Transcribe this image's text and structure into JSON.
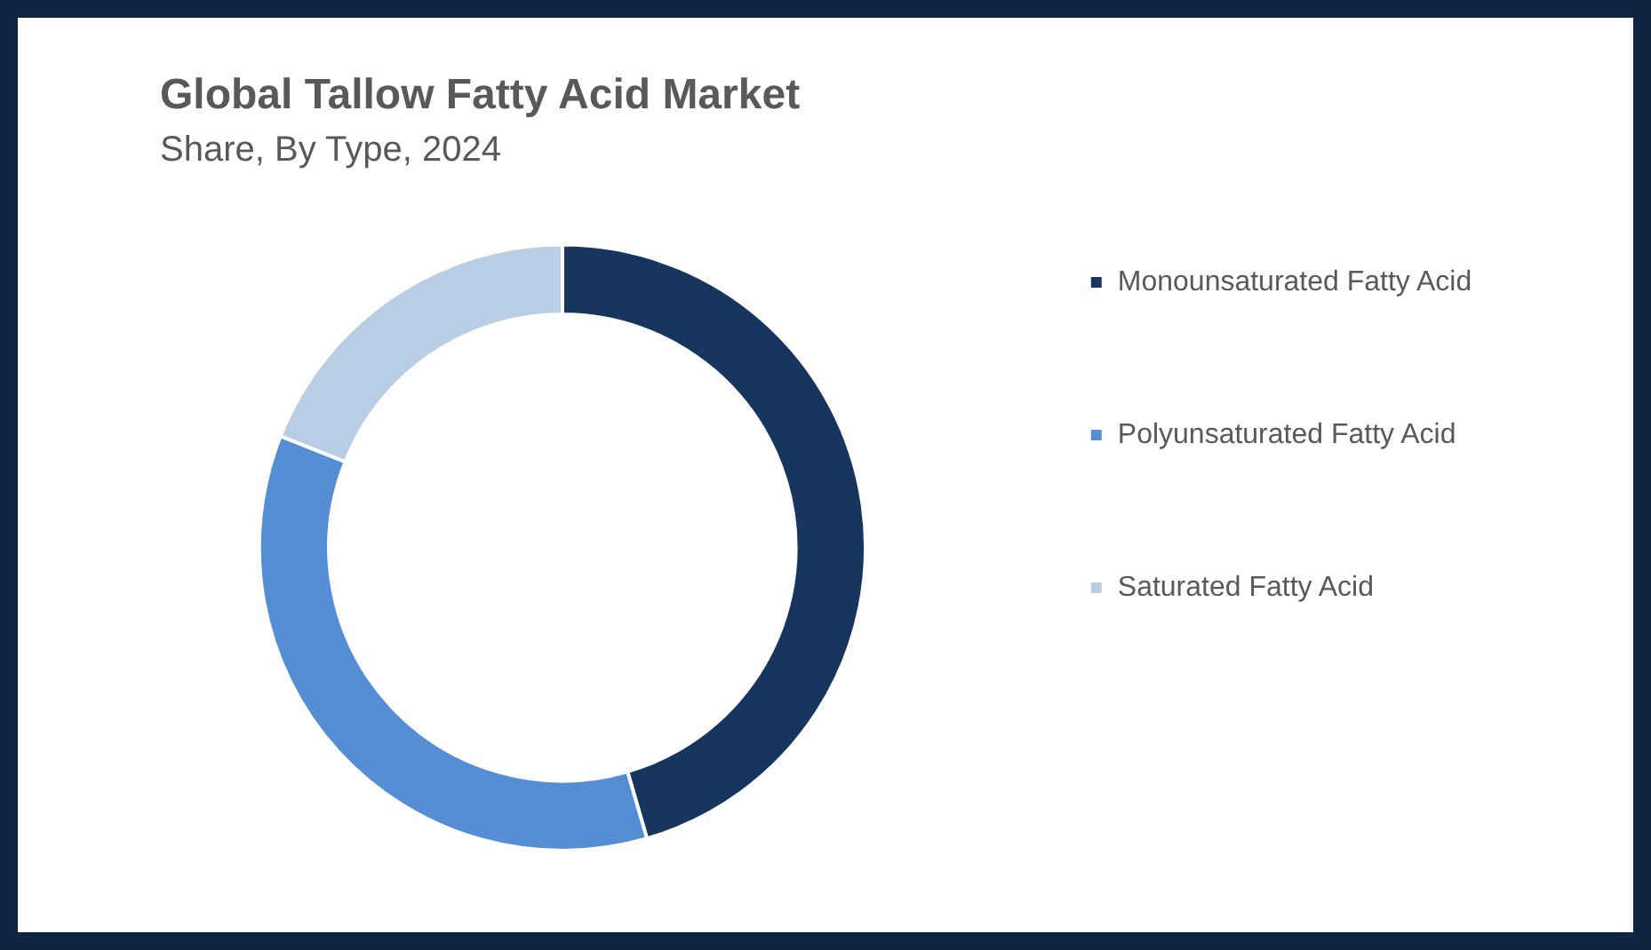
{
  "chart_data": {
    "type": "donut",
    "title": "Global Tallow Fatty Acid Market",
    "subtitle": "Share, By Type, 2024",
    "categories": [
      "Monounsaturated Fatty Acid",
      "Polyunsaturated Fatty Acid",
      "Saturated Fatty Acid"
    ],
    "values": [
      45.5,
      35.5,
      19
    ],
    "colors": [
      "#17365d",
      "#558ed5",
      "#b9cde5"
    ],
    "legend": "right"
  }
}
